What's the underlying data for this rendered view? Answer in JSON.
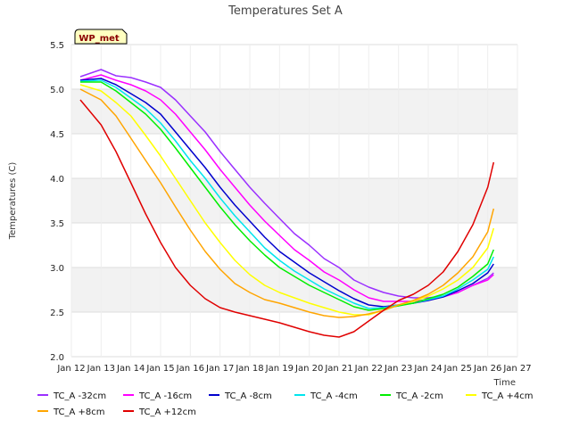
{
  "chart_data": {
    "type": "line",
    "title": "Temperatures Set A",
    "xlabel": "Time",
    "ylabel": "Temperatures (C)",
    "badge": "WP_met",
    "xlim": [
      12,
      27
    ],
    "ylim": [
      2.0,
      5.5
    ],
    "x_ticks": [
      {
        "value": 12,
        "label": "Jan 12"
      },
      {
        "value": 13,
        "label": "Jan 13"
      },
      {
        "value": 14,
        "label": "Jan 14"
      },
      {
        "value": 15,
        "label": "Jan 15"
      },
      {
        "value": 16,
        "label": "Jan 16"
      },
      {
        "value": 17,
        "label": "Jan 17"
      },
      {
        "value": 18,
        "label": "Jan 18"
      },
      {
        "value": 19,
        "label": "Jan 19"
      },
      {
        "value": 20,
        "label": "Jan 20"
      },
      {
        "value": 21,
        "label": "Jan 21"
      },
      {
        "value": 22,
        "label": "Jan 22"
      },
      {
        "value": 23,
        "label": "Jan 23"
      },
      {
        "value": 24,
        "label": "Jan 24"
      },
      {
        "value": 25,
        "label": "Jan 25"
      },
      {
        "value": 26,
        "label": "Jan 26"
      },
      {
        "value": 27,
        "label": "Jan 27"
      }
    ],
    "y_ticks": [
      {
        "value": 2.0,
        "label": "2.0"
      },
      {
        "value": 2.5,
        "label": "2.5"
      },
      {
        "value": 3.0,
        "label": "3.0"
      },
      {
        "value": 3.5,
        "label": "3.5"
      },
      {
        "value": 4.0,
        "label": "4.0"
      },
      {
        "value": 4.5,
        "label": "4.5"
      },
      {
        "value": 5.0,
        "label": "5.0"
      },
      {
        "value": 5.5,
        "label": "5.5"
      }
    ],
    "bands": [
      [
        2.5,
        3.0
      ],
      [
        3.5,
        4.0
      ],
      [
        4.5,
        5.0
      ]
    ],
    "colors": {
      "band": "#f2f2f2",
      "grid": "#dddddd",
      "badge_fill": "#ffffc0",
      "badge_border": "#000000"
    },
    "series": [
      {
        "name": "TC_A -32cm",
        "color": "#9b30ff",
        "x": [
          12.3,
          13.0,
          13.5,
          14.0,
          14.5,
          15.0,
          15.5,
          16.0,
          16.5,
          17.0,
          17.5,
          18.0,
          18.5,
          19.0,
          19.5,
          20.0,
          20.5,
          21.0,
          21.5,
          22.0,
          22.5,
          23.0,
          23.5,
          24.0,
          24.5,
          25.0,
          25.5,
          26.0,
          26.2
        ],
        "y": [
          5.14,
          5.22,
          5.15,
          5.13,
          5.08,
          5.02,
          4.88,
          4.7,
          4.52,
          4.3,
          4.1,
          3.9,
          3.72,
          3.55,
          3.38,
          3.25,
          3.1,
          3.0,
          2.86,
          2.78,
          2.72,
          2.68,
          2.66,
          2.66,
          2.68,
          2.72,
          2.8,
          2.88,
          2.94
        ]
      },
      {
        "name": "TC_A -16cm",
        "color": "#ff00ff",
        "x": [
          12.3,
          13.0,
          13.5,
          14.0,
          14.5,
          15.0,
          15.5,
          16.0,
          16.5,
          17.0,
          17.5,
          18.0,
          18.5,
          19.0,
          19.5,
          20.0,
          20.5,
          21.0,
          21.5,
          22.0,
          22.5,
          23.0,
          23.5,
          24.0,
          24.5,
          25.0,
          25.5,
          26.0,
          26.2
        ],
        "y": [
          5.1,
          5.16,
          5.1,
          5.05,
          4.98,
          4.88,
          4.72,
          4.52,
          4.32,
          4.1,
          3.9,
          3.7,
          3.52,
          3.36,
          3.2,
          3.08,
          2.95,
          2.86,
          2.75,
          2.66,
          2.62,
          2.62,
          2.62,
          2.64,
          2.67,
          2.72,
          2.8,
          2.86,
          2.92
        ]
      },
      {
        "name": "TC_A -8cm",
        "color": "#0000cd",
        "x": [
          12.3,
          13.0,
          13.5,
          14.0,
          14.5,
          15.0,
          15.5,
          16.0,
          16.5,
          17.0,
          17.5,
          18.0,
          18.5,
          19.0,
          19.5,
          20.0,
          20.5,
          21.0,
          21.5,
          22.0,
          22.5,
          23.0,
          23.5,
          24.0,
          24.5,
          25.0,
          25.5,
          26.0,
          26.2
        ],
        "y": [
          5.1,
          5.12,
          5.05,
          4.95,
          4.85,
          4.72,
          4.52,
          4.32,
          4.12,
          3.9,
          3.7,
          3.52,
          3.34,
          3.18,
          3.06,
          2.94,
          2.84,
          2.74,
          2.65,
          2.58,
          2.56,
          2.58,
          2.6,
          2.63,
          2.67,
          2.74,
          2.82,
          2.94,
          3.04
        ]
      },
      {
        "name": "TC_A -4cm",
        "color": "#00e5ee",
        "x": [
          12.3,
          13.0,
          13.5,
          14.0,
          14.5,
          15.0,
          15.5,
          16.0,
          16.5,
          17.0,
          17.5,
          18.0,
          18.5,
          19.0,
          19.5,
          20.0,
          20.5,
          21.0,
          21.5,
          22.0,
          22.5,
          23.0,
          23.5,
          24.0,
          24.5,
          25.0,
          25.5,
          26.0,
          26.2
        ],
        "y": [
          5.09,
          5.1,
          5.02,
          4.9,
          4.78,
          4.62,
          4.42,
          4.2,
          4.0,
          3.78,
          3.58,
          3.4,
          3.22,
          3.08,
          2.96,
          2.86,
          2.76,
          2.68,
          2.6,
          2.54,
          2.55,
          2.58,
          2.6,
          2.64,
          2.68,
          2.76,
          2.86,
          2.98,
          3.12
        ]
      },
      {
        "name": "TC_A -2cm",
        "color": "#00ee00",
        "x": [
          12.3,
          13.0,
          13.5,
          14.0,
          14.5,
          15.0,
          15.5,
          16.0,
          16.5,
          17.0,
          17.5,
          18.0,
          18.5,
          19.0,
          19.5,
          20.0,
          20.5,
          21.0,
          21.5,
          22.0,
          22.5,
          23.0,
          23.5,
          24.0,
          24.5,
          25.0,
          25.5,
          26.0,
          26.2
        ],
        "y": [
          5.08,
          5.08,
          4.98,
          4.85,
          4.72,
          4.55,
          4.34,
          4.12,
          3.9,
          3.68,
          3.48,
          3.3,
          3.14,
          3.0,
          2.9,
          2.8,
          2.72,
          2.64,
          2.56,
          2.52,
          2.54,
          2.57,
          2.6,
          2.65,
          2.7,
          2.78,
          2.9,
          3.04,
          3.2
        ]
      },
      {
        "name": "TC_A +4cm",
        "color": "#ffff00",
        "x": [
          12.3,
          13.0,
          13.5,
          14.0,
          14.5,
          15.0,
          15.5,
          16.0,
          16.5,
          17.0,
          17.5,
          18.0,
          18.5,
          19.0,
          19.5,
          20.0,
          20.5,
          21.0,
          21.5,
          22.0,
          22.5,
          23.0,
          23.5,
          24.0,
          24.5,
          25.0,
          25.5,
          26.0,
          26.2
        ],
        "y": [
          5.05,
          4.98,
          4.85,
          4.7,
          4.48,
          4.25,
          4.0,
          3.75,
          3.5,
          3.28,
          3.08,
          2.92,
          2.8,
          2.72,
          2.66,
          2.6,
          2.55,
          2.5,
          2.47,
          2.47,
          2.52,
          2.58,
          2.62,
          2.68,
          2.76,
          2.86,
          3.0,
          3.22,
          3.44
        ]
      },
      {
        "name": "TC_A +8cm",
        "color": "#ffa500",
        "x": [
          12.3,
          13.0,
          13.5,
          14.0,
          14.5,
          15.0,
          15.5,
          16.0,
          16.5,
          17.0,
          17.5,
          18.0,
          18.5,
          19.0,
          19.5,
          20.0,
          20.5,
          21.0,
          21.5,
          22.0,
          22.5,
          23.0,
          23.5,
          24.0,
          24.5,
          25.0,
          25.5,
          26.0,
          26.2
        ],
        "y": [
          5.0,
          4.88,
          4.7,
          4.45,
          4.2,
          3.95,
          3.68,
          3.42,
          3.18,
          2.98,
          2.82,
          2.72,
          2.64,
          2.6,
          2.55,
          2.5,
          2.46,
          2.44,
          2.45,
          2.48,
          2.52,
          2.58,
          2.63,
          2.7,
          2.8,
          2.94,
          3.12,
          3.4,
          3.66
        ]
      },
      {
        "name": "TC_A +12cm",
        "color": "#e00000",
        "x": [
          12.3,
          13.0,
          13.5,
          14.0,
          14.5,
          15.0,
          15.5,
          16.0,
          16.5,
          17.0,
          17.5,
          18.0,
          18.5,
          19.0,
          19.5,
          20.0,
          20.5,
          21.0,
          21.5,
          22.0,
          22.5,
          23.0,
          23.5,
          24.0,
          24.5,
          25.0,
          25.5,
          26.0,
          26.2
        ],
        "y": [
          4.88,
          4.6,
          4.3,
          3.95,
          3.6,
          3.28,
          3.0,
          2.8,
          2.65,
          2.55,
          2.5,
          2.46,
          2.42,
          2.38,
          2.33,
          2.28,
          2.24,
          2.22,
          2.28,
          2.4,
          2.52,
          2.63,
          2.7,
          2.8,
          2.95,
          3.18,
          3.48,
          3.9,
          4.18
        ]
      }
    ]
  }
}
